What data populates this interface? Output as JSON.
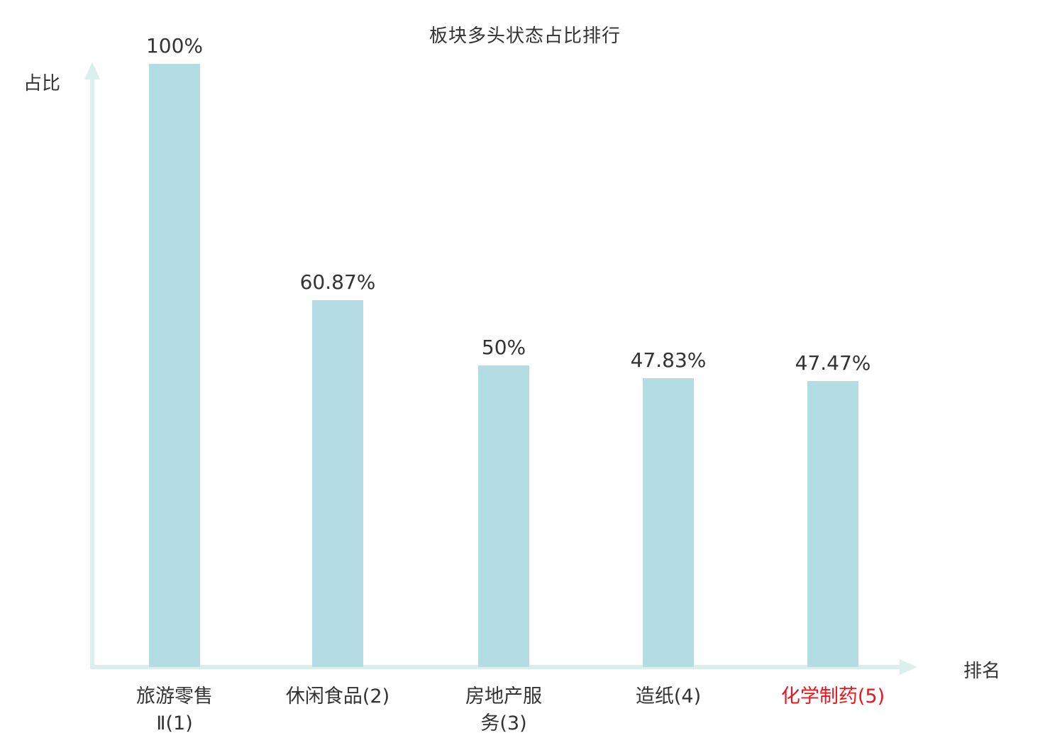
{
  "colors": {
    "bar": "#b3dde3",
    "axis": "#d9f0ec",
    "text": "#333333",
    "highlight": "#e9161c"
  },
  "chart_data": {
    "type": "bar",
    "title": "板块多头状态占比排行",
    "xlabel": "排名",
    "ylabel": "占比",
    "categories": [
      "旅游零售Ⅱ(1)",
      "休闲食品(2)",
      "房地产服务(3)",
      "造纸(4)",
      "化学制药(5)"
    ],
    "category_lines": [
      [
        "旅游零售",
        "Ⅱ(1)"
      ],
      [
        "休闲食品(2)"
      ],
      [
        "房地产服",
        "务(3)"
      ],
      [
        "造纸(4)"
      ],
      [
        "化学制药(5)"
      ]
    ],
    "values": [
      100,
      60.87,
      50,
      47.83,
      47.47
    ],
    "value_labels": [
      "100%",
      "60.87%",
      "50%",
      "47.83%",
      "47.47%"
    ],
    "highlight_index": 4,
    "ylim": [
      0,
      100
    ],
    "grid": false,
    "legend": "none"
  }
}
